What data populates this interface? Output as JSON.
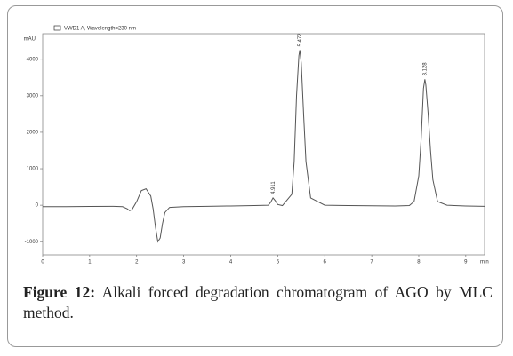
{
  "chart_data": {
    "type": "line",
    "legend": "VWD1 A, Wavelength=230 nm",
    "ylabel": "mAU",
    "xlabel": "min",
    "caption_label": "Figure 12:",
    "caption": "Alkali forced degradation chromatogram of AGO by MLC method.",
    "xlim": [
      0,
      9.4
    ],
    "ylim": [
      -1360,
      4700
    ],
    "xticks": [
      0,
      1,
      2,
      3,
      4,
      5,
      6,
      7,
      8,
      9
    ],
    "yticks": [
      -1000,
      0,
      1000,
      2000,
      3000,
      4000
    ],
    "peaks": [
      4.911,
      5.472,
      8.128
    ],
    "color": "#555555",
    "x": [
      0,
      0.5,
      1,
      1.5,
      1.7,
      1.8,
      1.85,
      1.9,
      2.0,
      2.1,
      2.2,
      2.3,
      2.35,
      2.4,
      2.45,
      2.5,
      2.55,
      2.6,
      2.7,
      3.0,
      3.5,
      4.0,
      4.5,
      4.8,
      4.85,
      4.9,
      4.95,
      5.0,
      5.1,
      5.3,
      5.35,
      5.4,
      5.45,
      5.47,
      5.5,
      5.55,
      5.6,
      5.7,
      6,
      6.5,
      7,
      7.5,
      7.8,
      7.9,
      8.0,
      8.05,
      8.1,
      8.13,
      8.15,
      8.2,
      8.25,
      8.3,
      8.4,
      8.6,
      9,
      9.4
    ],
    "values": [
      -40,
      -40,
      -35,
      -30,
      -40,
      -100,
      -150,
      -120,
      100,
      400,
      450,
      250,
      -100,
      -600,
      -1000,
      -900,
      -500,
      -200,
      -60,
      -40,
      -30,
      -20,
      -10,
      0,
      80,
      200,
      120,
      20,
      -10,
      300,
      1200,
      3000,
      4100,
      4250,
      3900,
      2500,
      1200,
      200,
      0,
      -10,
      -15,
      -20,
      -10,
      100,
      800,
      1800,
      3200,
      3450,
      3300,
      2500,
      1500,
      700,
      100,
      0,
      -20,
      -30
    ]
  }
}
